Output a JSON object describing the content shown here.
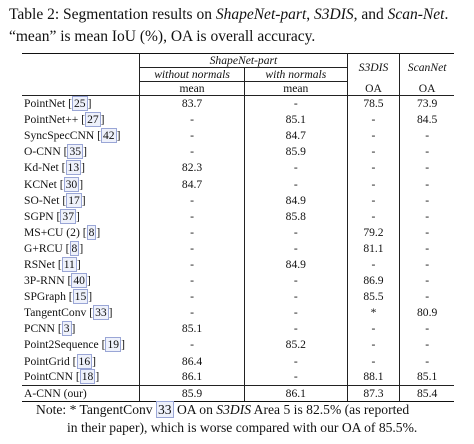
{
  "caption": {
    "label": "Table 2:",
    "text_1": " Segmentation results on ",
    "ds1": "ShapeNet-part",
    "comma": ", ",
    "ds2": "S3DIS",
    "and": ", and ",
    "ds3": "Scan-Net",
    "rest": ". “mean” is mean IoU (%), OA is overall accuracy."
  },
  "table": {
    "group_header": "ShapeNet-part",
    "sub_header_1": "without normals",
    "sub_header_2": "with normals",
    "s3dis_header": "S3DIS",
    "scannet_header": "ScanNet",
    "metric_mean_1": "mean",
    "metric_mean_2": "mean",
    "metric_oa_1": "OA",
    "metric_oa_2": "OA",
    "rows": [
      {
        "name": "PointNet",
        "ref": "25",
        "wo": "83.7",
        "w": "-",
        "s3": "78.5",
        "scan": "73.9"
      },
      {
        "name": "PointNet++",
        "ref": "27",
        "wo": "-",
        "w": "85.1",
        "s3": "-",
        "scan": "84.5"
      },
      {
        "name": "SyncSpecCNN",
        "ref": "42",
        "wo": "-",
        "w": "84.7",
        "s3": "-",
        "scan": "-"
      },
      {
        "name": "O-CNN",
        "ref": "35",
        "wo": "-",
        "w": "85.9",
        "s3": "-",
        "scan": "-"
      },
      {
        "name": "Kd-Net",
        "ref": "13",
        "wo": "82.3",
        "w": "-",
        "s3": "-",
        "scan": "-"
      },
      {
        "name": "KCNet",
        "ref": "30",
        "wo": "84.7",
        "w": "-",
        "s3": "-",
        "scan": "-"
      },
      {
        "name": "SO-Net",
        "ref": "17",
        "wo": "-",
        "w": "84.9",
        "s3": "-",
        "scan": "-"
      },
      {
        "name": "SGPN",
        "ref": "37",
        "wo": "-",
        "w": "85.8",
        "s3": "-",
        "scan": "-"
      },
      {
        "name": "MS+CU (2)",
        "ref": "8",
        "wo": "-",
        "w": "-",
        "s3": "79.2",
        "scan": "-"
      },
      {
        "name": "G+RCU",
        "ref": "8",
        "wo": "-",
        "w": "-",
        "s3": "81.1",
        "scan": "-"
      },
      {
        "name": "RSNet",
        "ref": "11",
        "wo": "-",
        "w": "84.9",
        "s3": "-",
        "scan": "-"
      },
      {
        "name": "3P-RNN",
        "ref": "40",
        "wo": "-",
        "w": "-",
        "s3": "86.9",
        "scan": "-"
      },
      {
        "name": "SPGraph",
        "ref": "15",
        "wo": "-",
        "w": "-",
        "s3": "85.5",
        "scan": "-"
      },
      {
        "name": "TangentConv",
        "ref": "33",
        "wo": "-",
        "w": "-",
        "s3": "*",
        "scan": "80.9"
      },
      {
        "name": "PCNN",
        "ref": "3",
        "wo": "85.1",
        "w": "-",
        "s3": "-",
        "scan": "-"
      },
      {
        "name": "Point2Sequence",
        "ref": "19",
        "wo": "-",
        "w": "85.2",
        "s3": "-",
        "scan": "-"
      },
      {
        "name": "PointGrid",
        "ref": "16",
        "wo": "86.4",
        "w": "-",
        "s3": "-",
        "scan": "-",
        "bold": "wo"
      },
      {
        "name": "PointCNN",
        "ref": "18",
        "wo": "86.1",
        "w": "-",
        "s3": "88.1",
        "scan": "85.1",
        "bold": "s3"
      }
    ],
    "final_row": {
      "name": "A-CNN (our)",
      "wo": "85.9",
      "w": "86.1",
      "s3": "87.3",
      "scan": "85.4"
    }
  },
  "note": {
    "prefix": "Note: * TangentConv ",
    "ref": "33",
    "mid": " OA on ",
    "ds": "S3DIS",
    "suffix": " Area 5 is 82.5% (as reported",
    "line2": "in their paper), which is worse compared with our OA of 85.5%."
  }
}
